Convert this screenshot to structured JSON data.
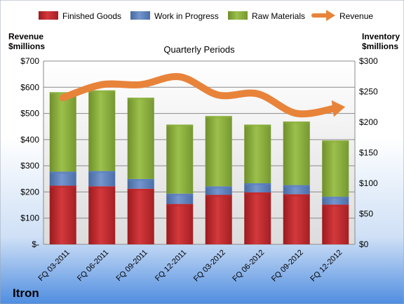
{
  "colors": {
    "finished_goods": "#c0262a",
    "work_in_progress": "#5b7fc0",
    "raw_materials": "#8db03c",
    "revenue": "#e8833a"
  },
  "chart_data": {
    "type": "bar",
    "stacked": true,
    "title": "Quarterly Periods",
    "left_axis_label": [
      "Revenue",
      "$millions"
    ],
    "right_axis_label": [
      "Inventory",
      "$millions"
    ],
    "company": "Itron",
    "categories": [
      "FQ 03-2011",
      "FQ 06-2011",
      "FQ 09-2011",
      "FQ 12-2011",
      "FQ 03-2012",
      "FQ 06-2012",
      "FQ 09-2012",
      "FQ 12-2012"
    ],
    "series": [
      {
        "name": "Finished Goods",
        "axis": "right",
        "values": [
          96,
          95,
          91,
          66,
          81,
          85,
          82,
          65
        ]
      },
      {
        "name": "Work in Progress",
        "axis": "right",
        "values": [
          23,
          25,
          16,
          17,
          14,
          15,
          15,
          13
        ]
      },
      {
        "name": "Raw Materials",
        "axis": "right",
        "values": [
          130,
          132,
          133,
          113,
          115,
          96,
          104,
          92
        ]
      }
    ],
    "line_series": {
      "name": "Revenue",
      "axis": "left",
      "values": [
        560,
        610,
        610,
        640,
        570,
        575,
        500,
        520
      ]
    },
    "left_ylim": [
      0,
      700
    ],
    "left_ticks": [
      "$-",
      "$100",
      "$200",
      "$300",
      "$400",
      "$500",
      "$600",
      "$700"
    ],
    "right_ylim": [
      0,
      300
    ],
    "right_ticks": [
      "$0",
      "$50",
      "$100",
      "$150",
      "$200",
      "$250",
      "$300"
    ],
    "legend": [
      "Finished Goods",
      "Work in Progress",
      "Raw Materials",
      "Revenue"
    ],
    "legend_position": "top",
    "grid": true
  }
}
